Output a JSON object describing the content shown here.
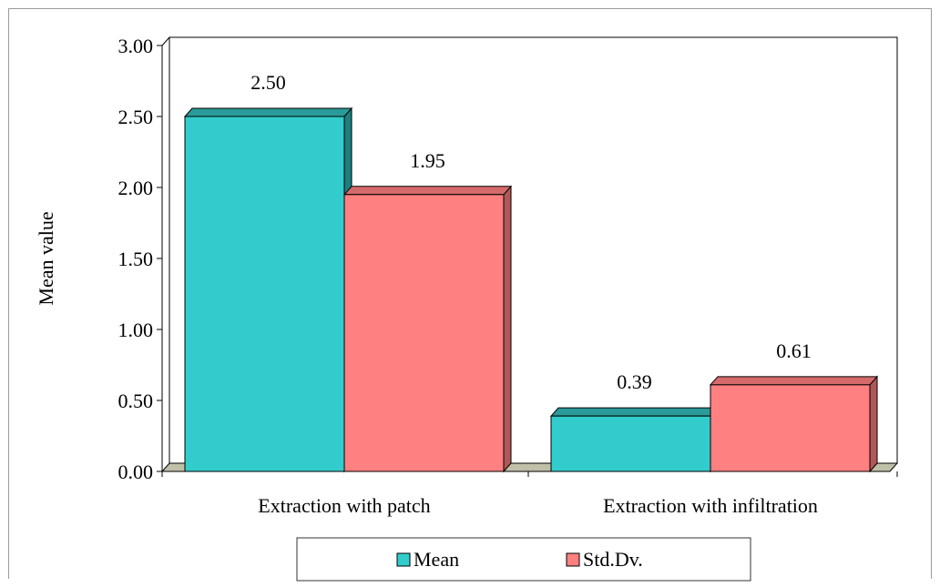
{
  "chart_data": {
    "type": "bar",
    "title": "",
    "xlabel": "",
    "ylabel": "Mean value",
    "ylim": [
      0,
      3
    ],
    "y_ticks": [
      "0.00",
      "0.50",
      "1.00",
      "1.50",
      "2.00",
      "2.50",
      "3.00"
    ],
    "categories": [
      "Extraction with patch",
      "Extraction with infiltration"
    ],
    "series": [
      {
        "name": "Mean",
        "values": [
          2.5,
          0.39
        ],
        "labels": [
          "2.50",
          "0.39"
        ],
        "color": "#33cccc",
        "top_color": "#2a9a9a",
        "side_color": "#1f7f7f"
      },
      {
        "name": "Std.Dv.",
        "values": [
          1.95,
          0.61
        ],
        "labels": [
          "1.95",
          "0.61"
        ],
        "color": "#ff8080",
        "top_color": "#d46a6a",
        "side_color": "#b05858"
      }
    ],
    "grid": false,
    "legend_position": "bottom",
    "three_d": true
  }
}
